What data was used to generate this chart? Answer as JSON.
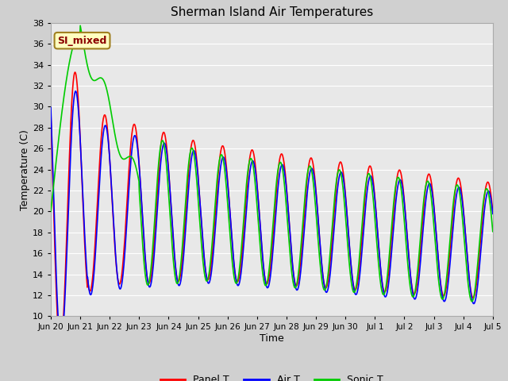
{
  "title": "Sherman Island Air Temperatures",
  "xlabel": "Time",
  "ylabel": "Temperature (C)",
  "ylim": [
    10,
    38
  ],
  "yticks": [
    10,
    12,
    14,
    16,
    18,
    20,
    22,
    24,
    26,
    28,
    30,
    32,
    34,
    36,
    38
  ],
  "fig_bg_color": "#d0d0d0",
  "plot_bg_color": "#e8e8e8",
  "grid_color": "white",
  "annotation_text": "SI_mixed",
  "annotation_color": "#8b0000",
  "annotation_bg": "#ffffc0",
  "annotation_edge": "#a08020",
  "legend_entries": [
    "Panel T",
    "Air T",
    "Sonic T"
  ],
  "line_colors": [
    "#ff0000",
    "#0000ff",
    "#00cc00"
  ],
  "line_width": 1.2,
  "xtick_labels": [
    "Jun 20",
    "Jun 21",
    "Jun 22",
    "Jun 23",
    "Jun 24",
    "Jun 25",
    "Jun 26",
    "Jun 27",
    "Jun 28",
    "Jun 29",
    "Jun 30",
    "Jul 1",
    "Jul 2",
    "Jul 3",
    "Jul 4",
    "Jul 5"
  ],
  "xtick_positions": [
    0,
    24,
    48,
    72,
    96,
    120,
    144,
    168,
    192,
    216,
    240,
    264,
    288,
    312,
    336,
    360
  ]
}
